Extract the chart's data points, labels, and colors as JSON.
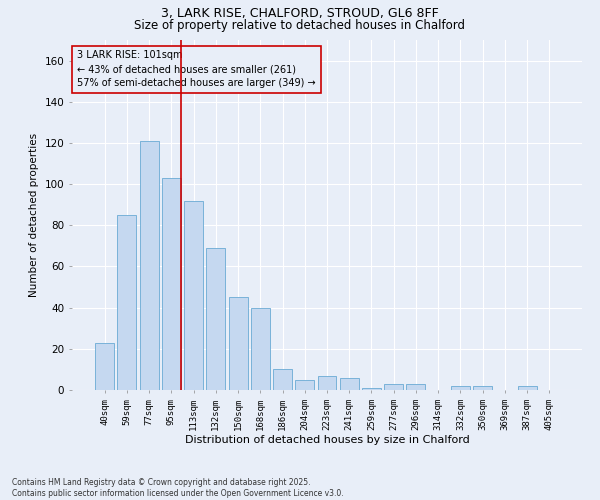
{
  "title_line1": "3, LARK RISE, CHALFORD, STROUD, GL6 8FF",
  "title_line2": "Size of property relative to detached houses in Chalford",
  "xlabel": "Distribution of detached houses by size in Chalford",
  "ylabel": "Number of detached properties",
  "categories": [
    "40sqm",
    "59sqm",
    "77sqm",
    "95sqm",
    "113sqm",
    "132sqm",
    "150sqm",
    "168sqm",
    "186sqm",
    "204sqm",
    "223sqm",
    "241sqm",
    "259sqm",
    "277sqm",
    "296sqm",
    "314sqm",
    "332sqm",
    "350sqm",
    "369sqm",
    "387sqm",
    "405sqm"
  ],
  "values": [
    23,
    85,
    121,
    103,
    92,
    69,
    45,
    40,
    10,
    5,
    7,
    6,
    1,
    3,
    3,
    0,
    2,
    2,
    0,
    2,
    0
  ],
  "bar_color": "#c5d8f0",
  "bar_edge_color": "#6aaad4",
  "vline_index": 3,
  "vline_color": "#cc0000",
  "annotation_text_line1": "3 LARK RISE: 101sqm",
  "annotation_text_line2": "← 43% of detached houses are smaller (261)",
  "annotation_text_line3": "57% of semi-detached houses are larger (349) →",
  "ylim": [
    0,
    170
  ],
  "yticks": [
    0,
    20,
    40,
    60,
    80,
    100,
    120,
    140,
    160
  ],
  "background_color": "#e8eef8",
  "grid_color": "#ffffff",
  "footnote_line1": "Contains HM Land Registry data © Crown copyright and database right 2025.",
  "footnote_line2": "Contains public sector information licensed under the Open Government Licence v3.0."
}
